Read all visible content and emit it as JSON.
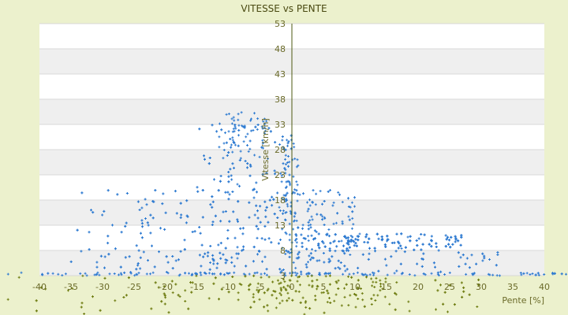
{
  "chart_data": {
    "type": "scatter",
    "title": "VITESSE vs PENTE",
    "xlabel": "Pente [%]",
    "ylabel": "Vitesse [km/h]",
    "xlim": [
      -40,
      40
    ],
    "ylim": [
      3,
      53
    ],
    "x_ticks": [
      -40,
      -35,
      -30,
      -25,
      -20,
      -15,
      -10,
      -5,
      0,
      5,
      10,
      15,
      20,
      25,
      30,
      35,
      40
    ],
    "y_ticks": [
      3,
      8,
      13,
      18,
      23,
      28,
      33,
      38,
      43,
      48,
      53
    ],
    "y_tick_labels_visible": [
      "53",
      "48",
      "43",
      "38",
      "33",
      "28",
      "23",
      "18",
      "13",
      "8",
      "3"
    ],
    "grid": "horizontal bands",
    "legend": "none",
    "series": [
      {
        "color": "#2e7bd1",
        "clusters": [
          {
            "x_range": [
              -45,
              45
            ],
            "y_range": [
              3,
              3.6
            ],
            "count": 170
          },
          {
            "x_range": [
              -35,
              33
            ],
            "y_range": [
              3.5,
              8
            ],
            "count": 220
          },
          {
            "x_range": [
              0,
              27
            ],
            "y_range": [
              7.8,
              11.3
            ],
            "count": 440
          },
          {
            "x_range": [
              -34,
              -3
            ],
            "y_range": [
              4,
              20
            ],
            "count": 240
          },
          {
            "x_range": [
              -15,
              0
            ],
            "y_range": [
              8,
              33
            ],
            "count": 260
          },
          {
            "x_range": [
              -12,
              -4
            ],
            "y_range": [
              26,
              35.5
            ],
            "count": 60
          },
          {
            "x_range": [
              -1,
              10
            ],
            "y_range": [
              3,
              20
            ],
            "count": 170
          },
          {
            "x_range": [
              -2,
              1
            ],
            "y_range": [
              3,
              30
            ],
            "count": 80
          }
        ]
      },
      {
        "color": "#6f7d12",
        "clusters": [
          {
            "x_range": [
              -45,
              30
            ],
            "y_range": [
              -6.5,
              3
            ],
            "count": 180
          },
          {
            "x_range": [
              -10,
              15
            ],
            "y_range": [
              -3.5,
              3
            ],
            "count": 140
          }
        ]
      }
    ]
  }
}
